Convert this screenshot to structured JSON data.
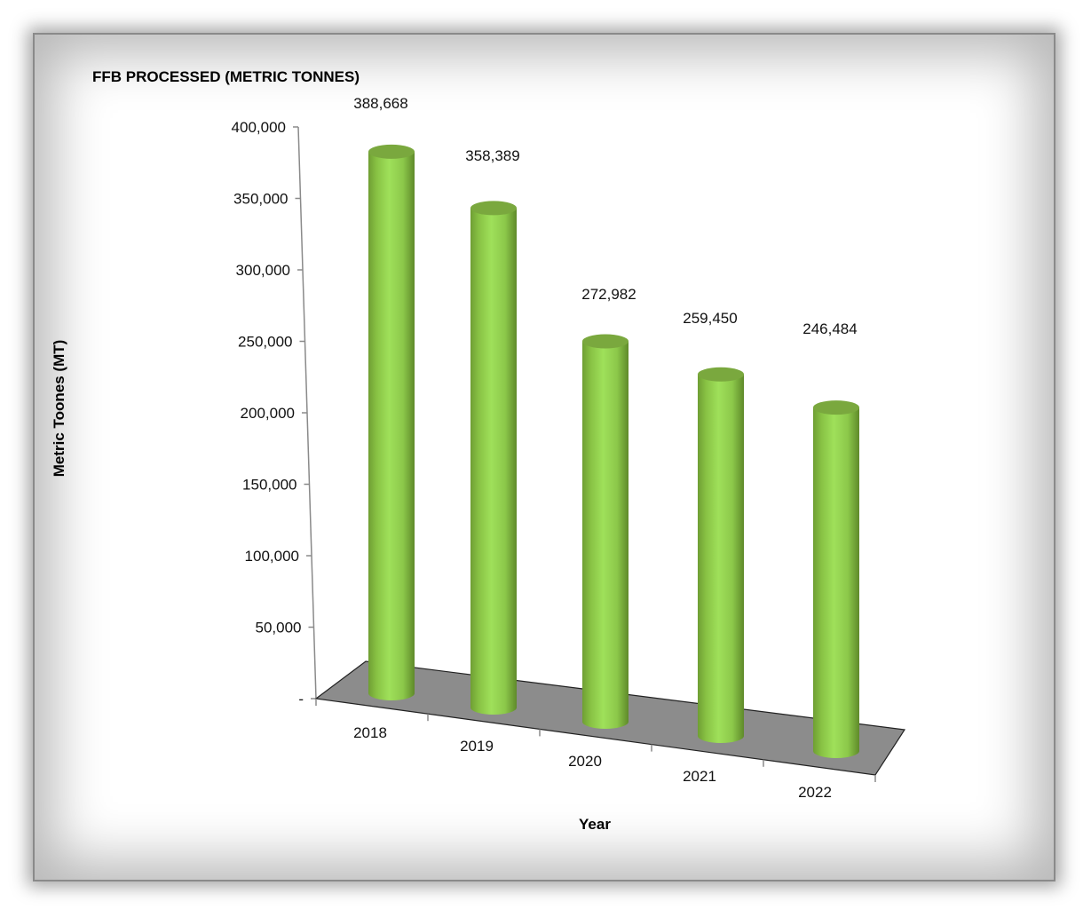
{
  "chart_data": {
    "type": "bar",
    "style": "3d-cylinder",
    "title": "FFB PROCESSED (METRIC TONNES)",
    "xlabel": "Year",
    "ylabel": "Metric Toones (MT)",
    "categories": [
      "2018",
      "2019",
      "2020",
      "2021",
      "2022"
    ],
    "values": [
      388668,
      358389,
      272982,
      259450,
      246484
    ],
    "data_labels": [
      "388,668",
      "358,389",
      "272,982",
      "259,450",
      "246,484"
    ],
    "y_ticks": [
      "-",
      "50,000",
      "100,000",
      "150,000",
      "200,000",
      "250,000",
      "300,000",
      "350,000",
      "400,000"
    ],
    "ylim": [
      0,
      400000
    ],
    "grid": false,
    "legend": "none",
    "colors": {
      "bar": "#92d050",
      "floor": "#8c8c8c",
      "axis": "#8a8a8a"
    }
  }
}
